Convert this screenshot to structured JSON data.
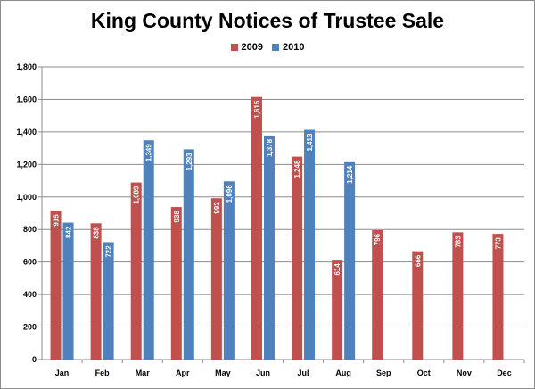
{
  "chart_data": {
    "type": "bar",
    "title": "King County Notices of Trustee Sale",
    "categories": [
      "Jan",
      "Feb",
      "Mar",
      "Apr",
      "May",
      "Jun",
      "Jul",
      "Aug",
      "Sep",
      "Oct",
      "Nov",
      "Dec"
    ],
    "series": [
      {
        "name": "2009",
        "color": "#c0504d",
        "values": [
          915,
          838,
          1089,
          938,
          992,
          1615,
          1248,
          614,
          796,
          666,
          783,
          773
        ],
        "labels": [
          "915",
          "838",
          "1,089",
          "938",
          "992",
          "1,615",
          "1,248",
          "614",
          "796",
          "666",
          "783",
          "773"
        ]
      },
      {
        "name": "2010",
        "color": "#4f81bd",
        "values": [
          842,
          722,
          1349,
          1293,
          1096,
          1378,
          1413,
          1214,
          null,
          null,
          null,
          null
        ],
        "labels": [
          "842",
          "722",
          "1,349",
          "1,293",
          "1,096",
          "1,378",
          "1,413",
          "1,214",
          null,
          null,
          null,
          null
        ]
      }
    ],
    "ylim": [
      0,
      1800
    ],
    "yticks": [
      0,
      200,
      400,
      600,
      800,
      1000,
      1200,
      1400,
      1600,
      1800
    ],
    "ytick_labels": [
      "0",
      "200",
      "400",
      "600",
      "800",
      "1,000",
      "1,200",
      "1,400",
      "1,600",
      "1,800"
    ],
    "grid": true,
    "legend_position": "top"
  }
}
